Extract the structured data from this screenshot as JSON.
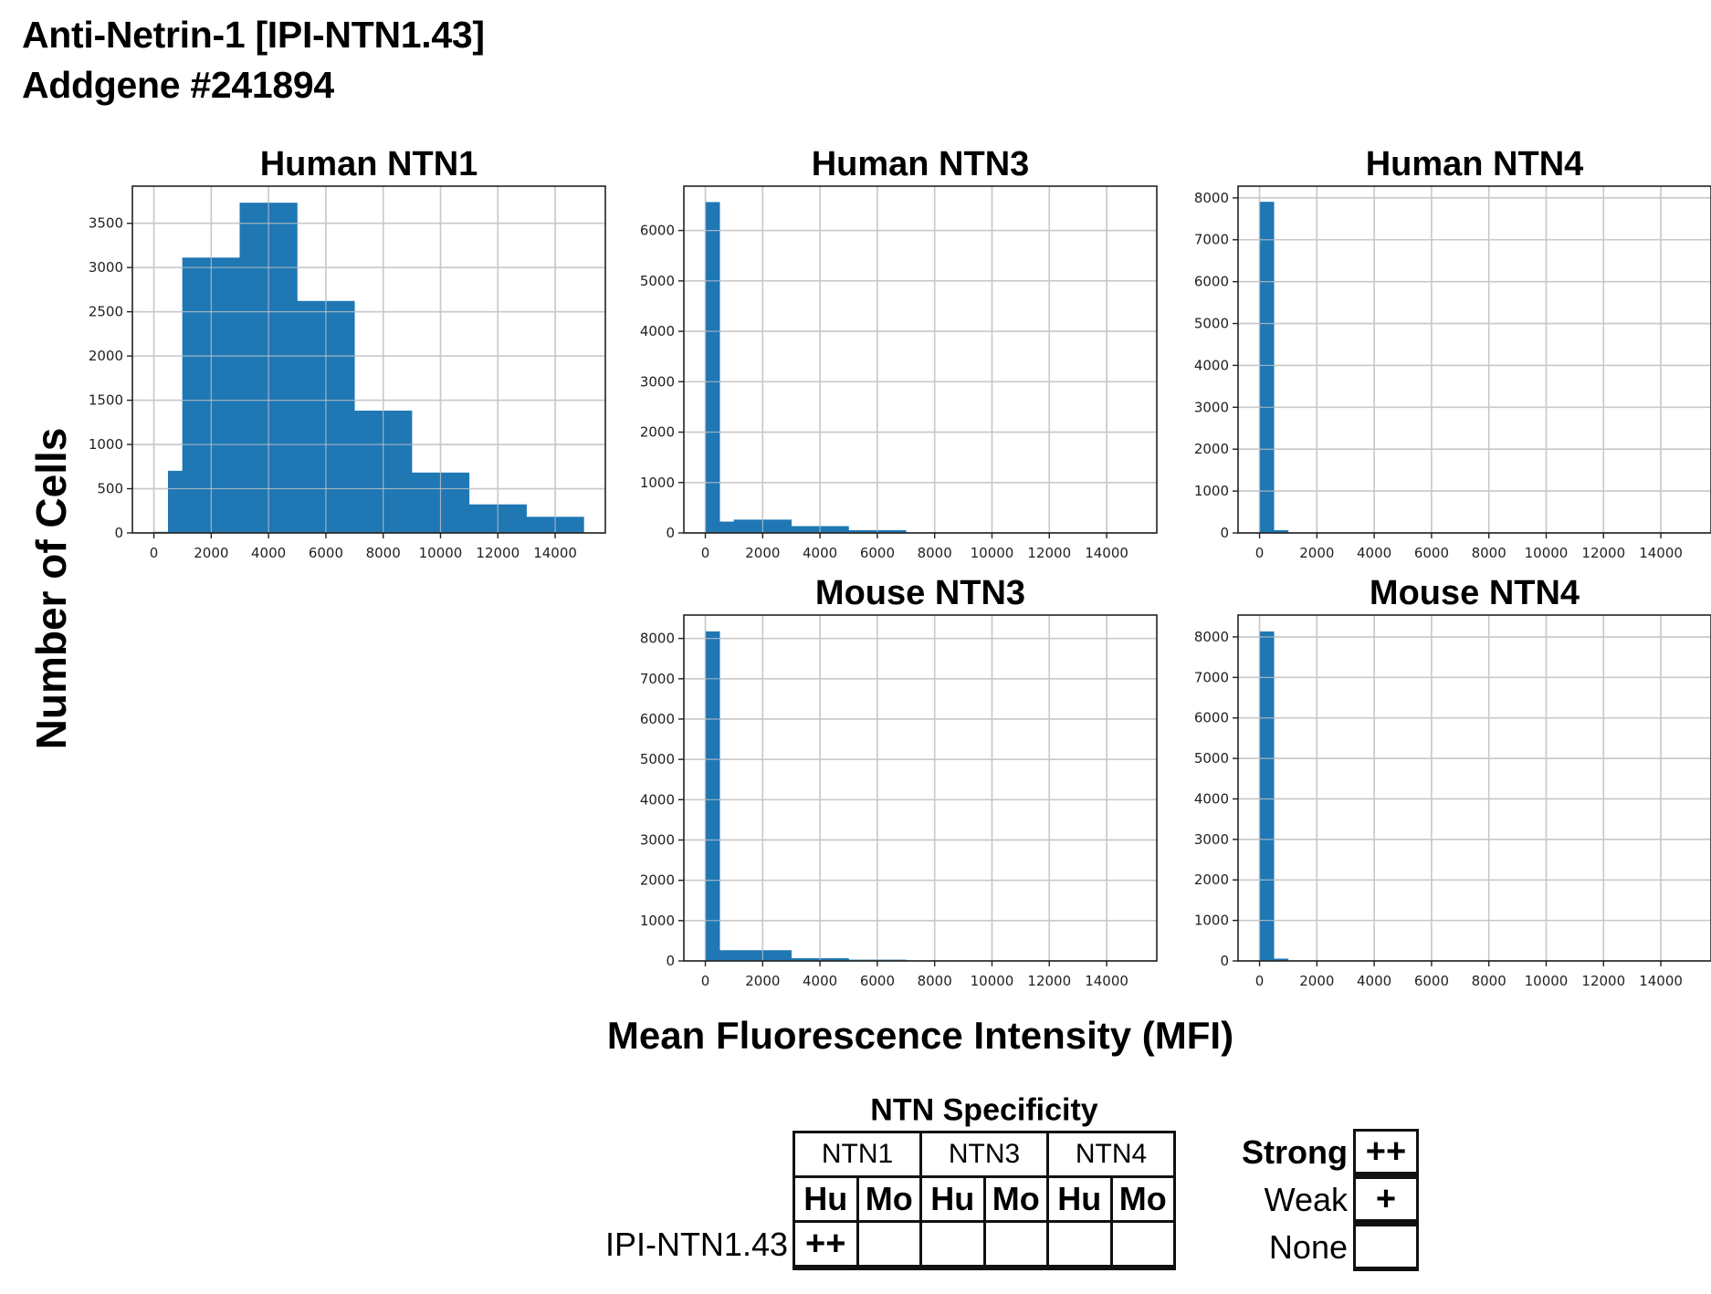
{
  "header": {
    "line1": "Anti-Netrin-1 [IPI-NTN1.43]",
    "line2": "Addgene #241894"
  },
  "axis_labels": {
    "y": "Number of Cells",
    "x": "Mean Fluorescence Intensity (MFI)"
  },
  "colors": {
    "bar": "#1f77b4",
    "grid": "#c8c8c8",
    "axis": "#222222"
  },
  "chart_data": [
    {
      "type": "bar",
      "title": "Human NTN1",
      "xlabel": "Mean Fluorescence Intensity (MFI)",
      "ylabel": "Number of Cells",
      "xlim": [
        -750,
        15750
      ],
      "ylim": [
        0,
        3920
      ],
      "xticks": [
        0,
        2000,
        4000,
        6000,
        8000,
        10000,
        12000,
        14000
      ],
      "yticks": [
        0,
        500,
        1000,
        1500,
        2000,
        2500,
        3000,
        3500
      ],
      "grid": true,
      "bins": [
        [
          0,
          500,
          10
        ],
        [
          500,
          1000,
          700
        ],
        [
          1000,
          3000,
          3110
        ],
        [
          3000,
          5000,
          3730
        ],
        [
          5000,
          7000,
          2620
        ],
        [
          7000,
          9000,
          1380
        ],
        [
          9000,
          11000,
          680
        ],
        [
          11000,
          13000,
          320
        ],
        [
          13000,
          15000,
          180
        ]
      ]
    },
    {
      "type": "bar",
      "title": "Human NTN3",
      "xlabel": "Mean Fluorescence Intensity (MFI)",
      "ylabel": "Number of Cells",
      "xlim": [
        -750,
        15750
      ],
      "ylim": [
        0,
        6880
      ],
      "xticks": [
        0,
        2000,
        4000,
        6000,
        8000,
        10000,
        12000,
        14000
      ],
      "yticks": [
        0,
        1000,
        2000,
        3000,
        4000,
        5000,
        6000
      ],
      "grid": true,
      "bins": [
        [
          0,
          500,
          6560
        ],
        [
          500,
          1000,
          220
        ],
        [
          1000,
          3000,
          260
        ],
        [
          3000,
          5000,
          130
        ],
        [
          5000,
          7000,
          50
        ]
      ]
    },
    {
      "type": "bar",
      "title": "Human NTN4",
      "xlabel": "Mean Fluorescence Intensity (MFI)",
      "ylabel": "Number of Cells",
      "xlim": [
        -750,
        15750
      ],
      "ylim": [
        0,
        8280
      ],
      "xticks": [
        0,
        2000,
        4000,
        6000,
        8000,
        10000,
        12000,
        14000
      ],
      "yticks": [
        0,
        1000,
        2000,
        3000,
        4000,
        5000,
        6000,
        7000,
        8000
      ],
      "grid": true,
      "bins": [
        [
          0,
          500,
          7900
        ],
        [
          500,
          1000,
          60
        ]
      ]
    },
    {
      "type": "bar",
      "title": "Mouse NTN3",
      "xlabel": "Mean Fluorescence Intensity (MFI)",
      "ylabel": "Number of Cells",
      "xlim": [
        -750,
        15750
      ],
      "ylim": [
        0,
        8580
      ],
      "xticks": [
        0,
        2000,
        4000,
        6000,
        8000,
        10000,
        12000,
        14000
      ],
      "yticks": [
        0,
        1000,
        2000,
        3000,
        4000,
        5000,
        6000,
        7000,
        8000
      ],
      "grid": true,
      "bins": [
        [
          0,
          500,
          8170
        ],
        [
          500,
          3000,
          260
        ],
        [
          3000,
          5000,
          60
        ],
        [
          5000,
          7000,
          25
        ]
      ]
    },
    {
      "type": "bar",
      "title": "Mouse NTN4",
      "xlabel": "Mean Fluorescence Intensity (MFI)",
      "ylabel": "Number of Cells",
      "xlim": [
        -750,
        15750
      ],
      "ylim": [
        0,
        8540
      ],
      "xticks": [
        0,
        2000,
        4000,
        6000,
        8000,
        10000,
        12000,
        14000
      ],
      "yticks": [
        0,
        1000,
        2000,
        3000,
        4000,
        5000,
        6000,
        7000,
        8000
      ],
      "grid": true,
      "bins": [
        [
          0,
          500,
          8130
        ],
        [
          500,
          1000,
          50
        ]
      ]
    }
  ],
  "specificity": {
    "title": "NTN Specificity",
    "genes": [
      "NTN1",
      "NTN3",
      "NTN4"
    ],
    "species": [
      "Hu",
      "Mo",
      "Hu",
      "Mo",
      "Hu",
      "Mo"
    ],
    "row_label": "IPI-NTN1.43",
    "values": [
      "++",
      "",
      "",
      "",
      "",
      ""
    ]
  },
  "legend": [
    {
      "label": "Strong",
      "symbol": "++"
    },
    {
      "label": "Weak",
      "symbol": "+"
    },
    {
      "label": "None",
      "symbol": ""
    }
  ]
}
